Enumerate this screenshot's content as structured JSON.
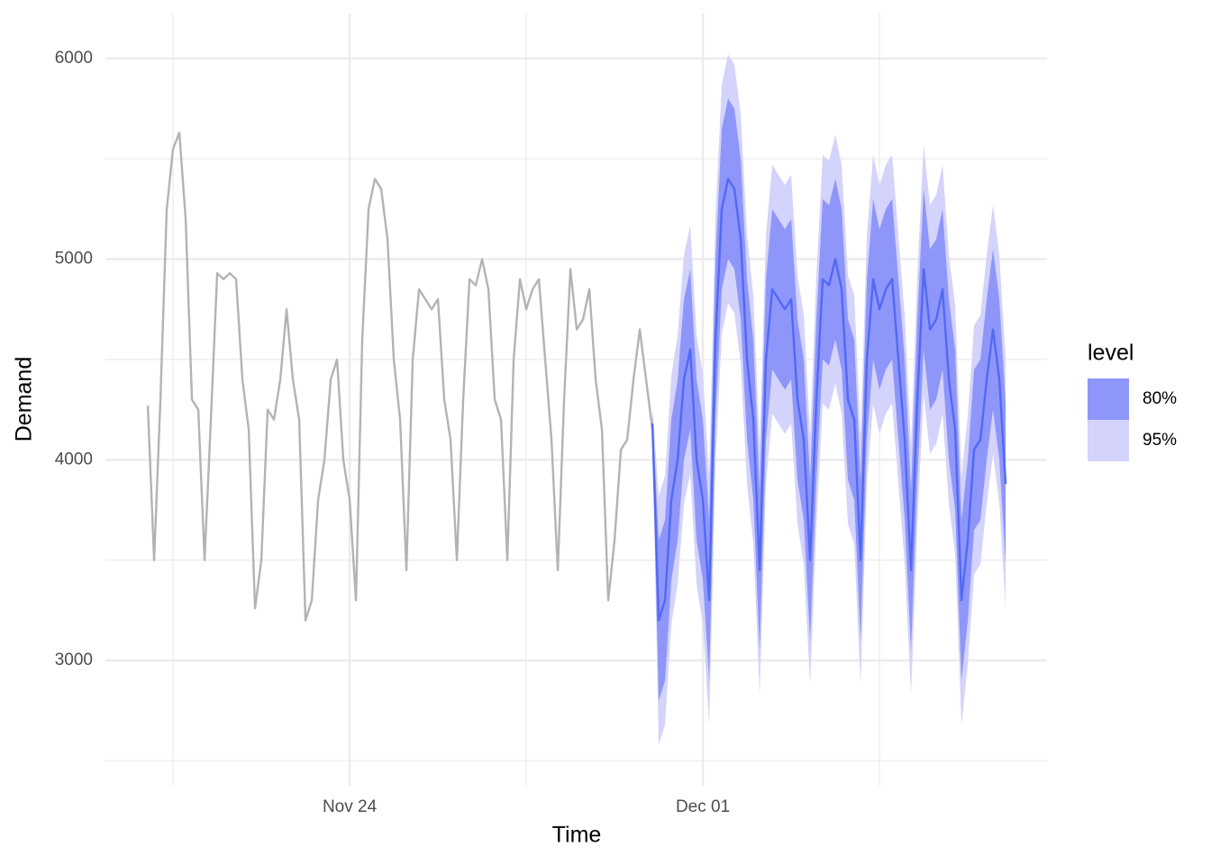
{
  "chart_data": {
    "type": "line",
    "x_label": "Time",
    "y_label": "Demand",
    "legend_title": "level",
    "legend_position": "right",
    "grid": true,
    "xlim": [
      19.16,
      37.82
    ],
    "xticks": [
      {
        "value": 24,
        "label": "Nov 24"
      },
      {
        "value": 31,
        "label": "Dec 01"
      }
    ],
    "x_minor_ticks": [
      20.5,
      27.5,
      34.5
    ],
    "ylim": [
      2400,
      6200
    ],
    "yticks": [
      3000,
      4000,
      5000,
      6000
    ],
    "y_minor_ticks": [
      2500,
      3500,
      4500,
      5500
    ],
    "history": {
      "color": "#b3b3b3",
      "x": [
        20,
        20.125,
        20.25,
        20.375,
        20.5,
        20.625,
        20.75,
        20.875,
        21,
        21.125,
        21.25,
        21.375,
        21.5,
        21.625,
        21.75,
        21.875,
        22,
        22.125,
        22.25,
        22.375,
        22.5,
        22.625,
        22.75,
        22.875,
        23,
        23.125,
        23.25,
        23.375,
        23.5,
        23.625,
        23.75,
        23.875,
        24,
        24.125,
        24.25,
        24.375,
        24.5,
        24.625,
        24.75,
        24.875,
        25,
        25.125,
        25.25,
        25.375,
        25.5,
        25.625,
        25.75,
        25.875,
        26,
        26.125,
        26.25,
        26.375,
        26.5,
        26.625,
        26.75,
        26.875,
        27,
        27.125,
        27.25,
        27.375,
        27.5,
        27.625,
        27.75,
        27.875,
        28,
        28.125,
        28.25,
        28.375,
        28.5,
        28.625,
        28.75,
        28.875,
        29,
        29.125,
        29.25,
        29.375,
        29.5,
        29.625,
        29.75,
        29.875,
        30
      ],
      "values": [
        4270,
        3500,
        4300,
        5250,
        5550,
        5630,
        5200,
        4300,
        4250,
        3500,
        4200,
        4930,
        4900,
        4930,
        4900,
        4400,
        4150,
        3260,
        3500,
        4250,
        4200,
        4400,
        4750,
        4400,
        4200,
        3200,
        3300,
        3800,
        4000,
        4400,
        4500,
        4000,
        3800,
        3300,
        4600,
        5250,
        5400,
        5350,
        5100,
        4500,
        4200,
        3450,
        4500,
        4850,
        4800,
        4750,
        4800,
        4300,
        4100,
        3500,
        4300,
        4900,
        4870,
        5000,
        4850,
        4300,
        4200,
        3500,
        4500,
        4900,
        4750,
        4850,
        4900,
        4500,
        4100,
        3450,
        4300,
        4950,
        4650,
        4700,
        4850,
        4400,
        4150,
        3300,
        3600,
        4050,
        4100,
        4400,
        4650,
        4400,
        4150
      ]
    },
    "forecast": {
      "color": "#5169f5",
      "x": [
        30,
        30.125,
        30.25,
        30.375,
        30.5,
        30.625,
        30.75,
        30.875,
        31,
        31.125,
        31.25,
        31.375,
        31.5,
        31.625,
        31.75,
        31.875,
        32,
        32.125,
        32.25,
        32.375,
        32.5,
        32.625,
        32.75,
        32.875,
        33,
        33.125,
        33.25,
        33.375,
        33.5,
        33.625,
        33.75,
        33.875,
        34,
        34.125,
        34.25,
        34.375,
        34.5,
        34.625,
        34.75,
        34.875,
        35,
        35.125,
        35.25,
        35.375,
        35.5,
        35.625,
        35.75,
        35.875,
        36,
        36.125,
        36.25,
        36.375,
        36.5,
        36.625,
        36.75,
        36.875,
        37
      ],
      "values": [
        4180,
        3200,
        3300,
        3800,
        4000,
        4400,
        4550,
        4000,
        3800,
        3300,
        4600,
        5250,
        5400,
        5350,
        5100,
        4500,
        4200,
        3450,
        4500,
        4850,
        4800,
        4750,
        4800,
        4300,
        4100,
        3500,
        4300,
        4900,
        4870,
        5000,
        4850,
        4300,
        4200,
        3500,
        4500,
        4900,
        4750,
        4850,
        4900,
        4500,
        4100,
        3450,
        4300,
        4950,
        4650,
        4700,
        4850,
        4400,
        4150,
        3300,
        3600,
        4050,
        4100,
        4400,
        4650,
        4400,
        3880
      ]
    },
    "bands": [
      {
        "name": "95%",
        "color": "#d3d3fb",
        "lower": [
          4100,
          2580,
          2680,
          3180,
          3380,
          3780,
          3930,
          3380,
          3180,
          2680,
          3980,
          4630,
          4780,
          4730,
          4480,
          3880,
          3580,
          2830,
          3880,
          4230,
          4180,
          4130,
          4180,
          3680,
          3480,
          2880,
          3680,
          4280,
          4250,
          4380,
          4230,
          3680,
          3580,
          2880,
          3880,
          4280,
          4130,
          4230,
          4280,
          3880,
          3480,
          2830,
          3680,
          4330,
          4030,
          4080,
          4230,
          3780,
          3530,
          2680,
          2980,
          3430,
          3480,
          3780,
          4030,
          3780,
          3260
        ],
        "upper": [
          4260,
          3820,
          3920,
          4420,
          4620,
          5020,
          5170,
          4620,
          4420,
          3920,
          5220,
          5870,
          6020,
          5970,
          5720,
          5120,
          4820,
          4070,
          5120,
          5470,
          5420,
          5370,
          5420,
          4920,
          4720,
          4120,
          4920,
          5520,
          5490,
          5620,
          5470,
          4920,
          4820,
          4120,
          5120,
          5520,
          5370,
          5470,
          5520,
          5120,
          4720,
          4070,
          4920,
          5570,
          5270,
          5320,
          5470,
          5020,
          4770,
          3920,
          4220,
          4670,
          4720,
          5020,
          5270,
          5020,
          4500
        ]
      },
      {
        "name": "80%",
        "color": "#8f96fa",
        "lower": [
          4130,
          2800,
          2900,
          3400,
          3600,
          4000,
          4150,
          3600,
          3400,
          2900,
          4200,
          4850,
          5000,
          4950,
          4700,
          4100,
          3800,
          3050,
          4100,
          4450,
          4400,
          4350,
          4400,
          3900,
          3700,
          3100,
          3900,
          4500,
          4470,
          4600,
          4450,
          3900,
          3800,
          3100,
          4100,
          4500,
          4350,
          4450,
          4500,
          4100,
          3700,
          3050,
          3900,
          4550,
          4250,
          4300,
          4450,
          4000,
          3750,
          2900,
          3200,
          3650,
          3700,
          4000,
          4250,
          4000,
          3480
        ],
        "upper": [
          4230,
          3600,
          3700,
          4200,
          4400,
          4800,
          4950,
          4400,
          4200,
          3700,
          5000,
          5650,
          5800,
          5750,
          5500,
          4900,
          4600,
          3850,
          4900,
          5250,
          5200,
          5150,
          5200,
          4700,
          4500,
          3900,
          4700,
          5300,
          5270,
          5400,
          5250,
          4700,
          4600,
          3900,
          4900,
          5300,
          5150,
          5250,
          5300,
          4900,
          4500,
          3850,
          4700,
          5350,
          5050,
          5100,
          5250,
          4800,
          4550,
          3700,
          4000,
          4450,
          4500,
          4800,
          5050,
          4800,
          4280
        ]
      }
    ]
  }
}
